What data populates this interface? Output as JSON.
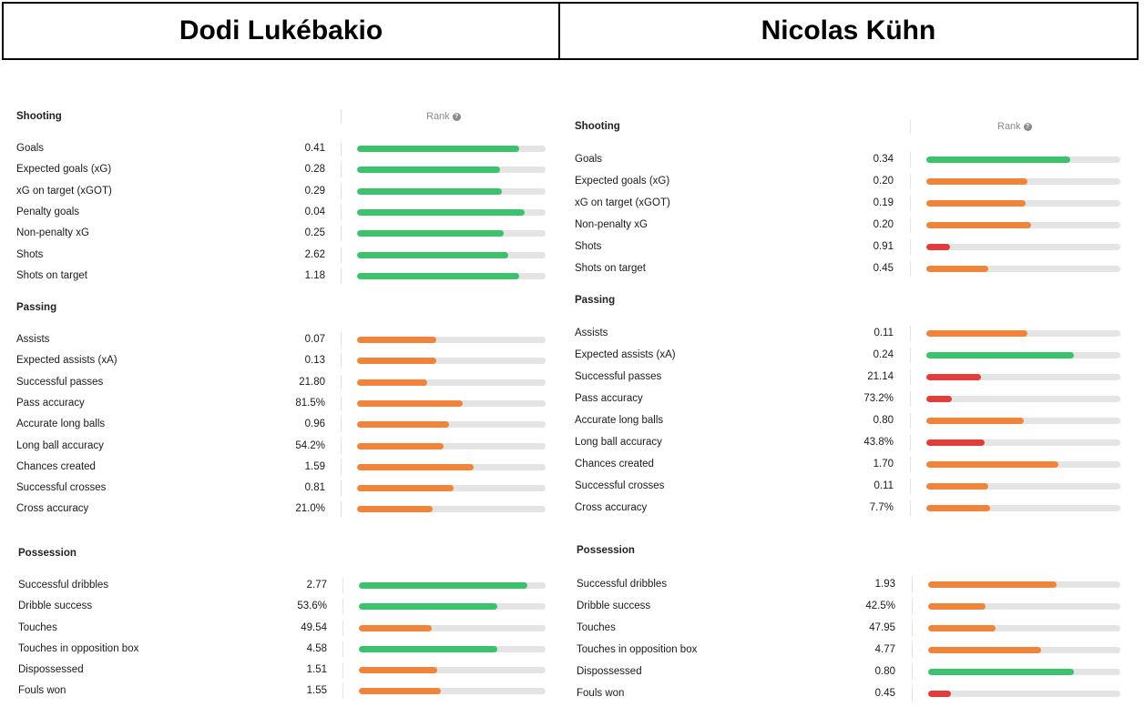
{
  "header": {
    "left_name": "Dodi Lukébakio",
    "right_name": "Nicolas Kühn"
  },
  "colors": {
    "green": "#3cc26d",
    "orange": "#f0843b",
    "red": "#e23c3c",
    "track": "#e4e4e4"
  },
  "rank_label": "Rank",
  "players": [
    {
      "sections": [
        {
          "title": "Shooting",
          "rows": [
            {
              "label": "Goals",
              "value": "0.41",
              "rank": 0.86,
              "color": "green"
            },
            {
              "label": "Expected goals (xG)",
              "value": "0.28",
              "rank": 0.76,
              "color": "green"
            },
            {
              "label": "xG on target (xGOT)",
              "value": "0.29",
              "rank": 0.77,
              "color": "green"
            },
            {
              "label": "Penalty goals",
              "value": "0.04",
              "rank": 0.89,
              "color": "green"
            },
            {
              "label": "Non-penalty xG",
              "value": "0.25",
              "rank": 0.78,
              "color": "green"
            },
            {
              "label": "Shots",
              "value": "2.62",
              "rank": 0.8,
              "color": "green"
            },
            {
              "label": "Shots on target",
              "value": "1.18",
              "rank": 0.86,
              "color": "green"
            }
          ]
        },
        {
          "title": "Passing",
          "rows": [
            {
              "label": "Assists",
              "value": "0.07",
              "rank": 0.42,
              "color": "orange"
            },
            {
              "label": "Expected assists (xA)",
              "value": "0.13",
              "rank": 0.42,
              "color": "orange"
            },
            {
              "label": "Successful passes",
              "value": "21.80",
              "rank": 0.37,
              "color": "orange"
            },
            {
              "label": "Pass accuracy",
              "value": "81.5%",
              "rank": 0.56,
              "color": "orange"
            },
            {
              "label": "Accurate long balls",
              "value": "0.96",
              "rank": 0.49,
              "color": "orange"
            },
            {
              "label": "Long ball accuracy",
              "value": "54.2%",
              "rank": 0.46,
              "color": "orange"
            },
            {
              "label": "Chances created",
              "value": "1.59",
              "rank": 0.62,
              "color": "orange"
            },
            {
              "label": "Successful crosses",
              "value": "0.81",
              "rank": 0.51,
              "color": "orange"
            },
            {
              "label": "Cross accuracy",
              "value": "21.0%",
              "rank": 0.4,
              "color": "orange"
            }
          ]
        },
        {
          "title": "Possession",
          "rows": [
            {
              "label": "Successful dribbles",
              "value": "2.77",
              "rank": 0.9,
              "color": "green"
            },
            {
              "label": "Dribble success",
              "value": "53.6%",
              "rank": 0.74,
              "color": "green"
            },
            {
              "label": "Touches",
              "value": "49.54",
              "rank": 0.39,
              "color": "orange"
            },
            {
              "label": "Touches in opposition box",
              "value": "4.58",
              "rank": 0.74,
              "color": "green"
            },
            {
              "label": "Dispossessed",
              "value": "1.51",
              "rank": 0.42,
              "color": "orange"
            },
            {
              "label": "Fouls won",
              "value": "1.55",
              "rank": 0.44,
              "color": "orange"
            }
          ]
        }
      ]
    },
    {
      "sections": [
        {
          "title": "Shooting",
          "rows": [
            {
              "label": "Goals",
              "value": "0.34",
              "rank": 0.74,
              "color": "green"
            },
            {
              "label": "Expected goals (xG)",
              "value": "0.20",
              "rank": 0.52,
              "color": "orange"
            },
            {
              "label": "xG on target (xGOT)",
              "value": "0.19",
              "rank": 0.51,
              "color": "orange"
            },
            {
              "label": "Non-penalty xG",
              "value": "0.20",
              "rank": 0.54,
              "color": "orange"
            },
            {
              "label": "Shots",
              "value": "0.91",
              "rank": 0.12,
              "color": "red"
            },
            {
              "label": "Shots on target",
              "value": "0.45",
              "rank": 0.32,
              "color": "orange"
            }
          ]
        },
        {
          "title": "Passing",
          "rows": [
            {
              "label": "Assists",
              "value": "0.11",
              "rank": 0.52,
              "color": "orange"
            },
            {
              "label": "Expected assists (xA)",
              "value": "0.24",
              "rank": 0.76,
              "color": "green"
            },
            {
              "label": "Successful passes",
              "value": "21.14",
              "rank": 0.28,
              "color": "red"
            },
            {
              "label": "Pass accuracy",
              "value": "73.2%",
              "rank": 0.13,
              "color": "red"
            },
            {
              "label": "Accurate long balls",
              "value": "0.80",
              "rank": 0.5,
              "color": "orange"
            },
            {
              "label": "Long ball accuracy",
              "value": "43.8%",
              "rank": 0.3,
              "color": "red"
            },
            {
              "label": "Chances created",
              "value": "1.70",
              "rank": 0.68,
              "color": "orange"
            },
            {
              "label": "Successful crosses",
              "value": "0.11",
              "rank": 0.32,
              "color": "orange"
            },
            {
              "label": "Cross accuracy",
              "value": "7.7%",
              "rank": 0.33,
              "color": "orange"
            }
          ]
        },
        {
          "title": "Possession",
          "rows": [
            {
              "label": "Successful dribbles",
              "value": "1.93",
              "rank": 0.67,
              "color": "orange"
            },
            {
              "label": "Dribble success",
              "value": "42.5%",
              "rank": 0.3,
              "color": "orange"
            },
            {
              "label": "Touches",
              "value": "47.95",
              "rank": 0.35,
              "color": "orange"
            },
            {
              "label": "Touches in opposition box",
              "value": "4.77",
              "rank": 0.59,
              "color": "orange"
            },
            {
              "label": "Dispossessed",
              "value": "0.80",
              "rank": 0.76,
              "color": "green"
            },
            {
              "label": "Fouls won",
              "value": "0.45",
              "rank": 0.12,
              "color": "red"
            }
          ]
        }
      ]
    }
  ]
}
